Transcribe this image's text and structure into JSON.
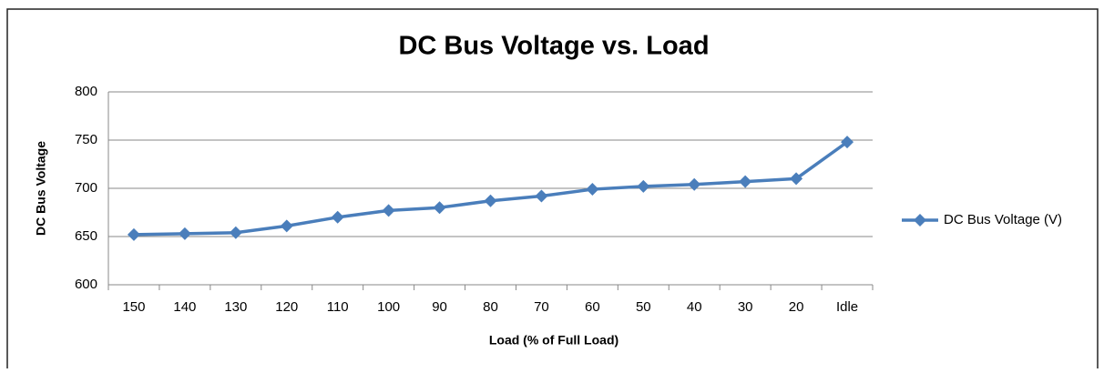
{
  "chart_data": {
    "type": "line",
    "title": "DC Bus Voltage vs. Load",
    "x_label": "Load (% of Full Load)",
    "y_label": "DC Bus Voltage",
    "categories": [
      "150",
      "140",
      "130",
      "120",
      "110",
      "100",
      "90",
      "80",
      "70",
      "60",
      "50",
      "40",
      "30",
      "20",
      "Idle"
    ],
    "series": [
      {
        "name": "DC Bus Voltage (V)",
        "color": "#4a7ebb",
        "values": [
          652,
          653,
          654,
          661,
          670,
          677,
          680,
          687,
          692,
          699,
          702,
          704,
          707,
          710,
          748
        ]
      }
    ],
    "ylim": [
      600,
      800
    ],
    "yticks": [
      600,
      650,
      700,
      750,
      800
    ],
    "grid": true,
    "legend": "right"
  }
}
